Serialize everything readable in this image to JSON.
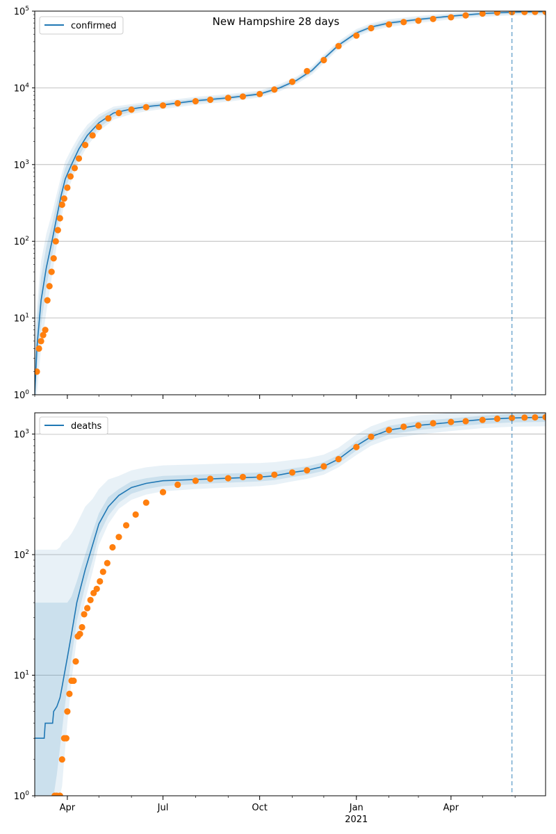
{
  "title": "New Hampshire 28 days",
  "x_ticks": [
    {
      "label": "Apr",
      "date": "2020-04-01"
    },
    {
      "label": "Jul",
      "date": "2020-07-01"
    },
    {
      "label": "Oct",
      "date": "2020-10-01"
    },
    {
      "label": "Jan",
      "date": "2021-01-01"
    },
    {
      "label": "Apr",
      "date": "2021-04-01"
    }
  ],
  "x_year_label": "2021",
  "chart_data": [
    {
      "type": "scatter",
      "panel": "top",
      "title": "New Hampshire 28 days",
      "scale": "log",
      "xlim": [
        "2020-03-01",
        "2021-06-30"
      ],
      "ylim": [
        1,
        100000
      ],
      "y_tick_labels": [
        {
          "base": "10",
          "exp": "0"
        },
        {
          "base": "10",
          "exp": "1"
        },
        {
          "base": "10",
          "exp": "2"
        },
        {
          "base": "10",
          "exp": "3"
        },
        {
          "base": "10",
          "exp": "4"
        },
        {
          "base": "10",
          "exp": "5"
        }
      ],
      "grid": "y",
      "legend": {
        "position": "top-left",
        "entries": [
          "confirmed"
        ]
      },
      "forecast_start": "2021-05-29",
      "colors": {
        "model": "#1f77b4",
        "observed": "#ff7f0e",
        "band": "#1f77b4",
        "vline": "#1f77b4"
      },
      "series": [
        {
          "name": "confirmed",
          "kind": "model",
          "x": [
            "2020-03-01",
            "2020-03-03",
            "2020-03-07",
            "2020-03-12",
            "2020-03-18",
            "2020-03-22",
            "2020-03-26",
            "2020-03-30",
            "2020-04-05",
            "2020-04-12",
            "2020-04-20",
            "2020-05-01",
            "2020-05-15",
            "2020-06-01",
            "2020-06-15",
            "2020-07-01",
            "2020-08-01",
            "2020-09-01",
            "2020-10-01",
            "2020-10-20",
            "2020-11-05",
            "2020-11-20",
            "2020-12-01",
            "2020-12-15",
            "2021-01-01",
            "2021-01-15",
            "2021-02-01",
            "2021-03-01",
            "2021-04-01",
            "2021-05-01",
            "2021-05-29",
            "2021-06-30"
          ],
          "y": [
            1,
            4,
            17,
            45,
            110,
            210,
            390,
            650,
            1000,
            1600,
            2400,
            3500,
            4700,
            5300,
            5700,
            6000,
            6800,
            7400,
            8300,
            10000,
            12500,
            17000,
            24000,
            36000,
            52000,
            62000,
            70000,
            78000,
            86000,
            93000,
            97000,
            98500
          ],
          "band_inner": {
            "lower": [
              1,
              2,
              8,
              25,
              70,
              140,
              270,
              480,
              780,
              1300,
              2000,
              3000,
              4200,
              4900,
              5300,
              5650,
              6400,
              7000,
              7900,
              9500,
              11800,
              16000,
              22500,
              34000,
              49000,
              58500,
              66000,
              74000,
              82000,
              88000,
              92000,
              93000
            ],
            "upper": [
              3,
              9,
              34,
              85,
              180,
              320,
              560,
              900,
              1320,
              2000,
              2900,
              4100,
              5300,
              5800,
              6150,
              6400,
              7250,
              7850,
              8750,
              10600,
              13300,
              18100,
              25500,
              38200,
              55200,
              65800,
              74200,
              82000,
              90000,
              98000,
              102000,
              104000
            ]
          },
          "band_outer": {
            "lower": [
              1,
              1,
              4,
              12,
              40,
              90,
              190,
              360,
              620,
              1100,
              1750,
              2700,
              3850,
              4550,
              4950,
              5300,
              6000,
              6600,
              7500,
              9000,
              11200,
              15000,
              21000,
              32000,
              46000,
              55000,
              62000,
              70000,
              78000,
              84000,
              88000,
              88000
            ],
            "upper": [
              5,
              14,
              55,
              125,
              250,
              420,
              700,
              1100,
              1600,
              2350,
              3300,
              4500,
              5700,
              6150,
              6500,
              6750,
              7650,
              8300,
              9200,
              11200,
              14000,
              19200,
              27000,
              40500,
              58500,
              69500,
              78500,
              86500,
              94500,
              103000,
              107000,
              110000
            ]
          }
        },
        {
          "name": "observed",
          "kind": "points",
          "x": [
            "2020-03-03",
            "2020-03-05",
            "2020-03-07",
            "2020-03-09",
            "2020-03-11",
            "2020-03-13",
            "2020-03-15",
            "2020-03-17",
            "2020-03-19",
            "2020-03-21",
            "2020-03-23",
            "2020-03-25",
            "2020-03-27",
            "2020-03-29",
            "2020-04-01",
            "2020-04-04",
            "2020-04-08",
            "2020-04-12",
            "2020-04-18",
            "2020-04-25",
            "2020-05-01",
            "2020-05-10",
            "2020-05-20",
            "2020-06-01",
            "2020-06-15",
            "2020-07-01",
            "2020-07-15",
            "2020-08-01",
            "2020-08-15",
            "2020-09-01",
            "2020-09-15",
            "2020-10-01",
            "2020-10-15",
            "2020-11-01",
            "2020-11-15",
            "2020-12-01",
            "2020-12-15",
            "2021-01-01",
            "2021-01-15",
            "2021-02-01",
            "2021-02-15",
            "2021-03-01",
            "2021-03-15",
            "2021-04-01",
            "2021-04-15",
            "2021-05-01",
            "2021-05-15",
            "2021-05-29",
            "2021-06-10",
            "2021-06-20",
            "2021-06-30"
          ],
          "y": [
            2,
            4,
            5,
            6,
            7,
            17,
            26,
            40,
            60,
            100,
            140,
            200,
            300,
            360,
            500,
            700,
            900,
            1200,
            1800,
            2400,
            3100,
            4000,
            4700,
            5200,
            5600,
            5900,
            6300,
            6700,
            7000,
            7400,
            7700,
            8300,
            9500,
            12000,
            16500,
            23000,
            35000,
            48000,
            60000,
            67000,
            72000,
            75000,
            79000,
            83000,
            88000,
            93000,
            96000,
            97000,
            97500,
            97800,
            98000
          ]
        }
      ]
    },
    {
      "type": "scatter",
      "panel": "bottom",
      "scale": "log",
      "xlim": [
        "2020-03-01",
        "2021-06-30"
      ],
      "ylim": [
        1,
        1500
      ],
      "y_tick_labels": [
        {
          "base": "10",
          "exp": "0"
        },
        {
          "base": "10",
          "exp": "1"
        },
        {
          "base": "10",
          "exp": "2"
        },
        {
          "base": "10",
          "exp": "3"
        }
      ],
      "grid": "y",
      "legend": {
        "position": "top-left",
        "entries": [
          "deaths"
        ]
      },
      "forecast_start": "2021-05-29",
      "colors": {
        "model": "#1f77b4",
        "observed": "#ff7f0e",
        "band": "#1f77b4",
        "vline": "#1f77b4"
      },
      "series": [
        {
          "name": "deaths",
          "kind": "model",
          "x": [
            "2020-03-01",
            "2020-03-10",
            "2020-03-11",
            "2020-03-18",
            "2020-03-19",
            "2020-03-22",
            "2020-03-25",
            "2020-03-27",
            "2020-03-29",
            "2020-04-01",
            "2020-04-05",
            "2020-04-10",
            "2020-04-18",
            "2020-04-25",
            "2020-05-01",
            "2020-05-10",
            "2020-05-20",
            "2020-06-01",
            "2020-06-15",
            "2020-07-01",
            "2020-08-01",
            "2020-09-01",
            "2020-10-01",
            "2020-10-15",
            "2020-11-01",
            "2020-11-15",
            "2020-12-01",
            "2020-12-15",
            "2021-01-01",
            "2021-01-15",
            "2021-02-01",
            "2021-03-01",
            "2021-04-01",
            "2021-05-01",
            "2021-05-29",
            "2021-06-30"
          ],
          "y": [
            3,
            3,
            4,
            4,
            5,
            5.5,
            6.5,
            8,
            10,
            14,
            22,
            40,
            75,
            120,
            180,
            250,
            310,
            360,
            390,
            410,
            420,
            430,
            440,
            450,
            480,
            500,
            540,
            620,
            800,
            950,
            1080,
            1180,
            1250,
            1320,
            1360,
            1380
          ],
          "band_inner": {
            "lower": [
              1,
              1,
              1,
              1,
              1,
              1.5,
              2.5,
              3.5,
              5,
              8,
              14,
              28,
              55,
              90,
              145,
              210,
              270,
              320,
              350,
              370,
              385,
              395,
              405,
              415,
              440,
              460,
              495,
              570,
              730,
              870,
              990,
              1080,
              1150,
              1210,
              1250,
              1260
            ],
            "upper": [
              40,
              40,
              40,
              40,
              40,
              40,
              40,
              40,
              40,
              40,
              45,
              60,
              100,
              155,
              220,
              300,
              350,
              405,
              430,
              450,
              460,
              470,
              480,
              490,
              520,
              540,
              585,
              670,
              870,
              1030,
              1170,
              1280,
              1350,
              1420,
              1470,
              1500
            ]
          },
          "band_outer": {
            "lower": [
              1,
              1,
              1,
              1,
              1,
              1,
              1,
              1.2,
              2,
              4,
              9,
              20,
              42,
              72,
              120,
              180,
              240,
              285,
              315,
              335,
              350,
              360,
              370,
              380,
              405,
              425,
              460,
              530,
              670,
              800,
              910,
              990,
              1060,
              1120,
              1150,
              1160
            ],
            "upper": [
              110,
              110,
              110,
              110,
              110,
              110,
              115,
              125,
              130,
              135,
              150,
              180,
              250,
              290,
              350,
              420,
              450,
              500,
              530,
              550,
              560,
              570,
              575,
              585,
              610,
              630,
              675,
              770,
              990,
              1160,
              1310,
              1430,
              1500,
              1560,
              1600,
              1620
            ]
          }
        },
        {
          "name": "observed",
          "kind": "points",
          "x": [
            "2020-03-20",
            "2020-03-22",
            "2020-03-25",
            "2020-03-27",
            "2020-03-29",
            "2020-03-31",
            "2020-04-01",
            "2020-04-03",
            "2020-04-05",
            "2020-04-07",
            "2020-04-09",
            "2020-04-11",
            "2020-04-13",
            "2020-04-15",
            "2020-04-17",
            "2020-04-20",
            "2020-04-23",
            "2020-04-26",
            "2020-04-29",
            "2020-05-02",
            "2020-05-05",
            "2020-05-09",
            "2020-05-14",
            "2020-05-20",
            "2020-05-27",
            "2020-06-05",
            "2020-06-15",
            "2020-07-01",
            "2020-07-15",
            "2020-08-01",
            "2020-08-15",
            "2020-09-01",
            "2020-09-15",
            "2020-10-01",
            "2020-10-15",
            "2020-11-01",
            "2020-11-15",
            "2020-12-01",
            "2020-12-15",
            "2021-01-01",
            "2021-01-15",
            "2021-02-01",
            "2021-02-15",
            "2021-03-01",
            "2021-03-15",
            "2021-04-01",
            "2021-04-15",
            "2021-05-01",
            "2021-05-15",
            "2021-05-29",
            "2021-06-10",
            "2021-06-20",
            "2021-06-30"
          ],
          "y": [
            1,
            1,
            1,
            2,
            3,
            3,
            5,
            7,
            9,
            9,
            13,
            21,
            22,
            25,
            32,
            36,
            42,
            48,
            52,
            60,
            72,
            85,
            115,
            140,
            175,
            215,
            270,
            330,
            380,
            410,
            425,
            430,
            440,
            440,
            460,
            480,
            500,
            540,
            620,
            780,
            950,
            1080,
            1150,
            1180,
            1230,
            1260,
            1280,
            1310,
            1340,
            1360,
            1370,
            1375,
            1380
          ]
        }
      ]
    }
  ]
}
